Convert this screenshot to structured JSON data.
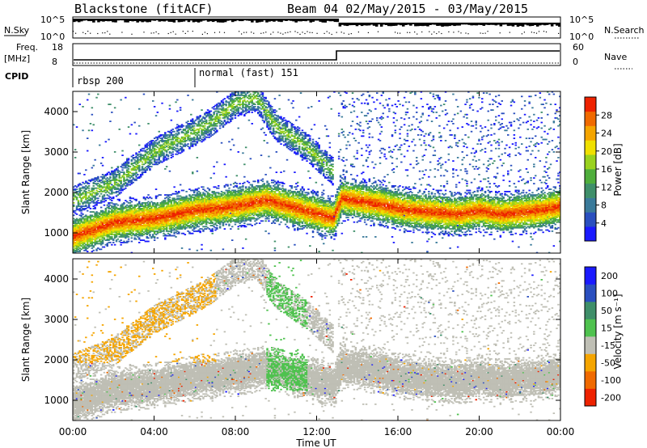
{
  "header": {
    "station": "Blackstone (fitACF)",
    "beam": "Beam 04 02/May/2015 - 03/May/2015"
  },
  "top_panels": {
    "nsky_label": "N.Sky",
    "nsearch_label": "N.Search",
    "count_ticks": [
      "10^5",
      "10^0"
    ],
    "freq_label": "Freq.",
    "freq_unit": "[MHz]",
    "freq_ticks": [
      "18",
      "8"
    ],
    "nave_label": "Nave",
    "nave_ticks": [
      "60",
      "0"
    ],
    "cpid_label": "CPID",
    "cpid_segments": [
      "rbsp 200",
      "normal (fast) 151"
    ]
  },
  "colors": {
    "power_scale": [
      "#1a1aff",
      "#2a4fbf",
      "#3a7a9a",
      "#3f8f6a",
      "#4fae3c",
      "#9ad21e",
      "#f0e000",
      "#f5a500",
      "#f06a00",
      "#ee2200"
    ],
    "velocity_scale": [
      "#1a1aff",
      "#2a4fbf",
      "#3f8f6a",
      "#4fc24f",
      "#bfbfb5",
      "#f5a500",
      "#f06a00",
      "#ee2200"
    ]
  },
  "chart_data": [
    {
      "type": "heatmap",
      "ylabel": "Slant Range [km]",
      "xlabel": "Time UT",
      "x_ticks": [
        "00:00",
        "04:00",
        "08:00",
        "12:00",
        "16:00",
        "20:00",
        "00:00"
      ],
      "y_ticks": [
        "1000",
        "2000",
        "3000",
        "4000"
      ],
      "ylim": [
        500,
        4500
      ],
      "colorbar_label": "Power [dB]",
      "colorbar_ticks": [
        "4",
        "8",
        "12",
        "16",
        "20",
        "24",
        "28"
      ],
      "ridge_range_km": [
        [
          0,
          900
        ],
        [
          2,
          1250
        ],
        [
          4,
          1350
        ],
        [
          6,
          1550
        ],
        [
          8,
          1650
        ],
        [
          9.5,
          1800
        ],
        [
          11,
          1600
        ],
        [
          12.8,
          1350
        ],
        [
          13.2,
          1850
        ],
        [
          15,
          1700
        ],
        [
          16.5,
          1550
        ],
        [
          18,
          1500
        ],
        [
          19,
          1450
        ],
        [
          20,
          1550
        ],
        [
          21,
          1450
        ],
        [
          22,
          1500
        ],
        [
          23,
          1550
        ],
        [
          24,
          1650
        ]
      ],
      "upper_arc_range_km": [
        [
          0,
          1800
        ],
        [
          2,
          2200
        ],
        [
          4,
          3000
        ],
        [
          6,
          3500
        ],
        [
          7,
          3800
        ],
        [
          8,
          4200
        ],
        [
          9,
          4350
        ],
        [
          10,
          3600
        ],
        [
          11.5,
          3100
        ],
        [
          12.8,
          2500
        ]
      ]
    },
    {
      "type": "heatmap",
      "ylabel": "Slant Range [km]",
      "xlabel": "Time UT",
      "x_ticks": [
        "00:00",
        "04:00",
        "08:00",
        "12:00",
        "16:00",
        "20:00",
        "00:00"
      ],
      "y_ticks": [
        "1000",
        "2000",
        "3000",
        "4000"
      ],
      "ylim": [
        500,
        4500
      ],
      "colorbar_label": "Velocity [m s⁻¹]",
      "colorbar_ticks": [
        "200",
        "100",
        "50",
        "15",
        "-15",
        "-50",
        "-100",
        "-200"
      ]
    }
  ],
  "xlabel": "Time UT"
}
